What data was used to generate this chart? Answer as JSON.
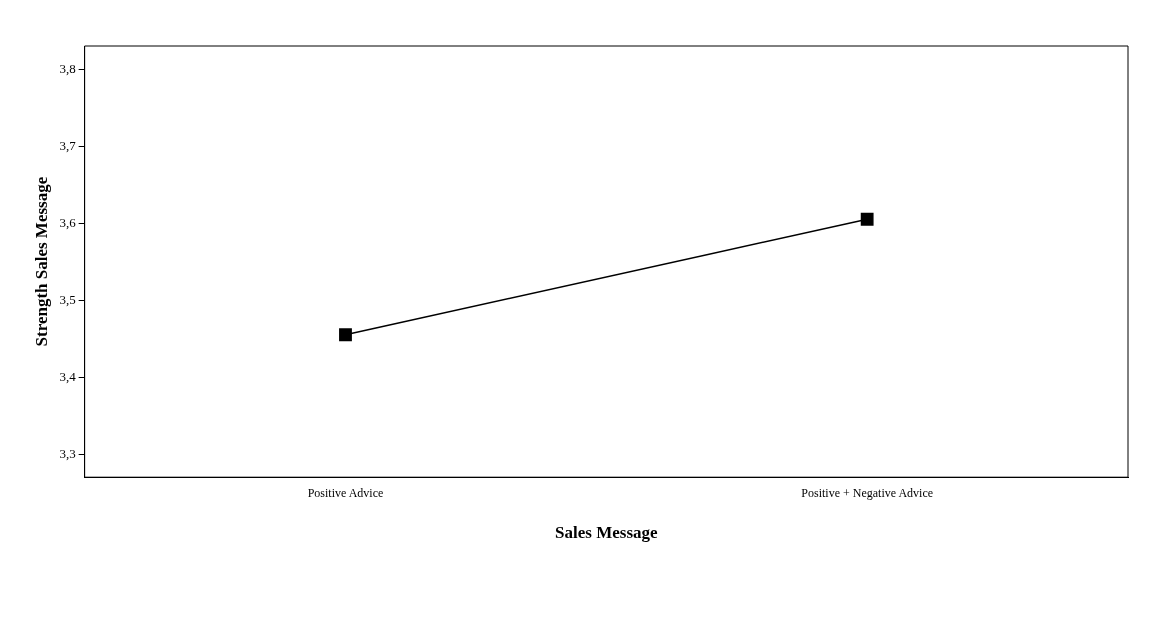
{
  "chart_data": {
    "type": "line",
    "xlabel": "Sales Message",
    "ylabel": "Strength Sales Message",
    "categories": [
      "Positive Advice",
      "Positive + Negative Advice"
    ],
    "series": [
      {
        "color": "#000000",
        "values": [
          3.455,
          3.605
        ]
      }
    ],
    "ylim": [
      3.27,
      3.83
    ],
    "yticks": [
      {
        "value": 3.3,
        "label": "3,3"
      },
      {
        "value": 3.4,
        "label": "3,4"
      },
      {
        "value": 3.5,
        "label": "3,5"
      },
      {
        "value": 3.6,
        "label": "3,6"
      },
      {
        "value": 3.7,
        "label": "3,7"
      },
      {
        "value": 3.8,
        "label": "3,8"
      }
    ],
    "grid": false,
    "legend": false,
    "marker": "square",
    "line_style": "solid"
  }
}
